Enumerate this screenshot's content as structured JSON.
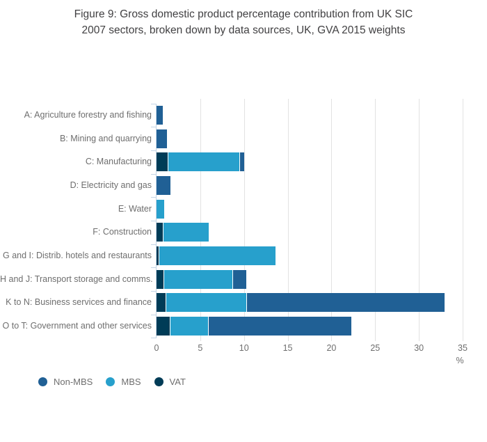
{
  "header": {
    "title_line1": "Figure 9: Gross domestic product percentage contribution from UK SIC",
    "title_line2": "2007 sectors, broken down by data sources, UK, GVA 2015 weights"
  },
  "chart_data": {
    "type": "bar",
    "orientation": "horizontal-stacked",
    "title": "Figure 9: Gross domestic product percentage contribution from UK SIC 2007 sectors, broken down by data sources, UK, GVA 2015 weights",
    "xlabel": "%",
    "xlim": [
      0,
      35
    ],
    "xticks": [
      0,
      5,
      10,
      15,
      20,
      25,
      30,
      35
    ],
    "grid": "vertical",
    "legend_position": "bottom-left",
    "background_color": "#ffffff",
    "gridline_color": "#e2e2e2",
    "axis_color": "#c3d5e6",
    "text_color": "#6e6e6e",
    "title_color": "#414042",
    "categories": [
      "A: Agriculture forestry and fishing",
      "B: Mining and quarrying",
      "C: Manufacturing",
      "D: Electricity and gas",
      "E: Water",
      "F: Construction",
      "G and I: Distrib. hotels and restaurants",
      "H and J: Transport storage and comms.",
      "K to N: Business services and finance",
      "O to T: Government and other services"
    ],
    "series": [
      {
        "name": "VAT",
        "color": "#003C57",
        "values": [
          0,
          0,
          1.3,
          0,
          0,
          0.7,
          0.2,
          0.8,
          1.0,
          1.5
        ]
      },
      {
        "name": "MBS",
        "color": "#27A0CC",
        "values": [
          0,
          0,
          8.2,
          0,
          0.9,
          5.3,
          13.4,
          7.9,
          9.3,
          4.4
        ]
      },
      {
        "name": "Non-MBS",
        "color": "#206095",
        "values": [
          0.7,
          1.2,
          0.5,
          1.6,
          0,
          0,
          0,
          1.6,
          22.6,
          16.4
        ]
      }
    ],
    "legend": [
      {
        "label": "Non-MBS",
        "color": "#206095"
      },
      {
        "label": "MBS",
        "color": "#27A0CC"
      },
      {
        "label": "VAT",
        "color": "#003C57"
      }
    ]
  }
}
